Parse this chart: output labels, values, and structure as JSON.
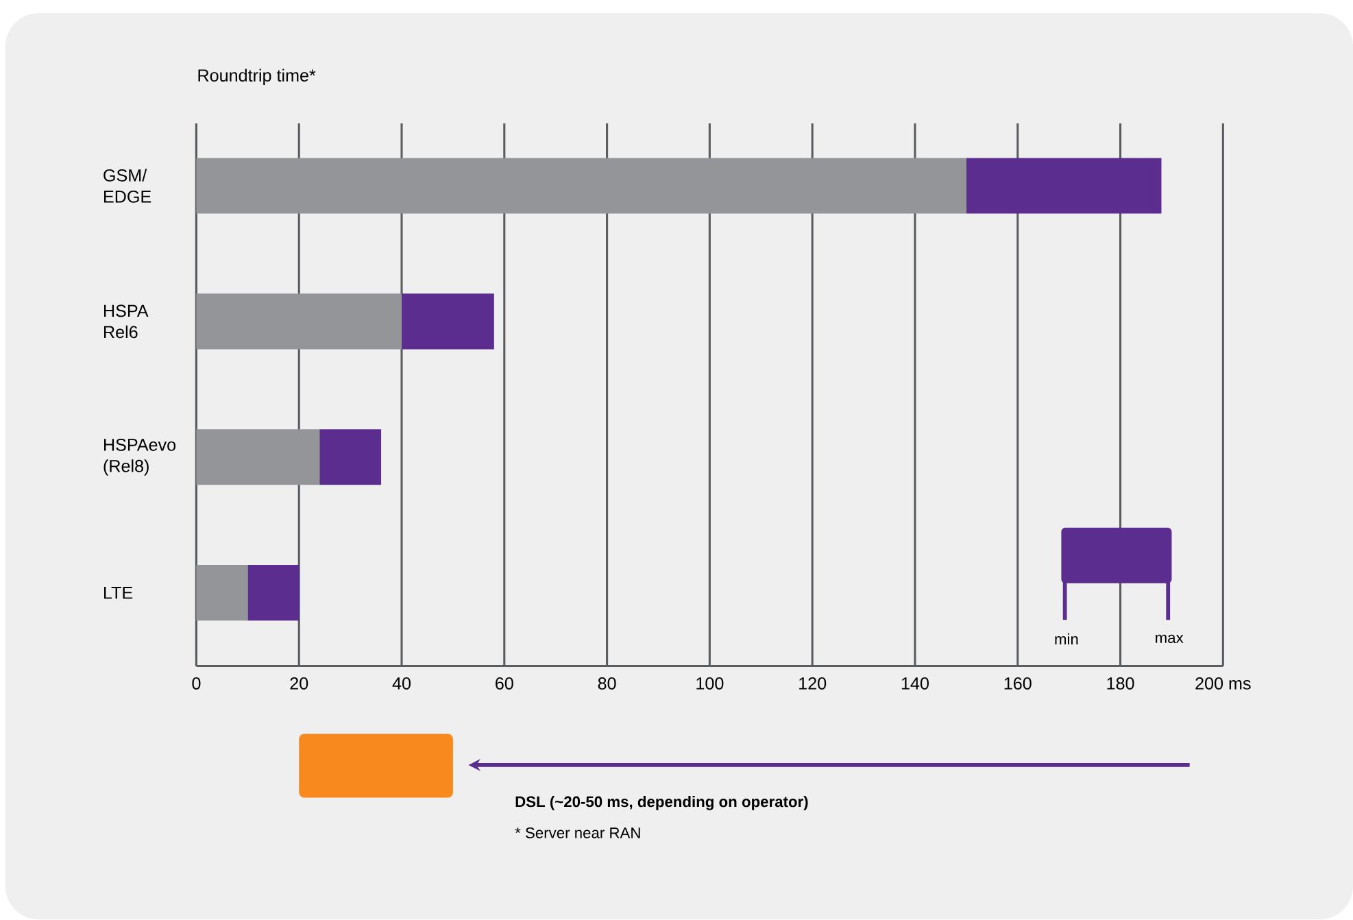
{
  "chart_data": {
    "type": "bar",
    "orientation": "horizontal",
    "stacked": true,
    "title": "Roundtrip time*",
    "categories": [
      "GSM/ EDGE",
      "HSPA Rel6",
      "HSPAevo (Rel8)",
      "LTE"
    ],
    "series": [
      {
        "color": "#939598",
        "values": [
          150,
          40,
          24,
          10
        ]
      },
      {
        "color": "#5b2d8e",
        "values": [
          38,
          18,
          12,
          10
        ]
      }
    ],
    "xlim": [
      0,
      200
    ],
    "xticks": [
      0,
      20,
      40,
      60,
      80,
      100,
      120,
      140,
      160,
      180,
      {
        "value": 200,
        "label": "200 ms"
      }
    ],
    "grid": "x",
    "annotations": [
      "min",
      "max",
      "**DSL (~20-50 ms, depending on operator)**",
      "* Server near RAN"
    ]
  }
}
